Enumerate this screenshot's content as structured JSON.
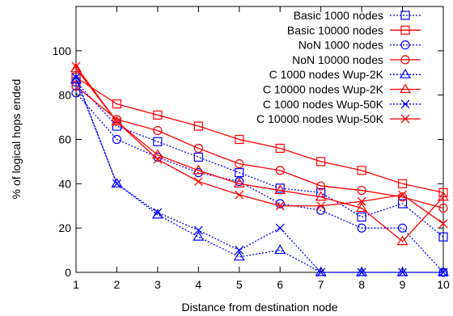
{
  "chart_data": {
    "type": "line",
    "title": "",
    "xlabel": "Distance from destination node",
    "ylabel": "% of logical hops ended",
    "xlim": [
      1,
      10
    ],
    "ylim": [
      0,
      120
    ],
    "x_ticks": [
      1,
      2,
      3,
      4,
      5,
      6,
      7,
      8,
      9,
      10
    ],
    "y_ticks": [
      0,
      20,
      40,
      60,
      80,
      100
    ],
    "grid": false,
    "legend_position": "top-right",
    "x": [
      1,
      2,
      3,
      4,
      5,
      6,
      7,
      8,
      9,
      10
    ],
    "series": [
      {
        "name": "Basic 1000 nodes",
        "color": "#0000ff",
        "dash": "dotted",
        "marker": "square",
        "values": [
          86,
          66,
          59,
          52,
          45,
          38,
          36,
          25,
          31,
          16
        ]
      },
      {
        "name": "Basic 10000 nodes",
        "color": "#ff0000",
        "dash": "solid",
        "marker": "square",
        "values": [
          88,
          76,
          71,
          66,
          60,
          56,
          50,
          46,
          40,
          36
        ]
      },
      {
        "name": "NoN 1000 nodes",
        "color": "#0000ff",
        "dash": "dotted",
        "marker": "circle",
        "values": [
          81,
          60,
          52,
          45,
          41,
          31,
          28,
          20,
          20,
          0
        ]
      },
      {
        "name": "NoN 10000 nodes",
        "color": "#ff0000",
        "dash": "solid",
        "marker": "circle",
        "values": [
          84,
          69,
          64,
          56,
          49,
          46,
          39,
          37,
          34,
          29
        ]
      },
      {
        "name": "C 1000 nodes Wup-2K",
        "color": "#0000ff",
        "dash": "dotted",
        "marker": "triangle",
        "values": [
          87,
          40,
          26,
          16,
          7,
          10,
          0,
          0,
          0,
          0
        ]
      },
      {
        "name": "C 10000 nodes Wup-2K",
        "color": "#ff0000",
        "dash": "solid",
        "marker": "triangle",
        "values": [
          92,
          68,
          53,
          46,
          40,
          37,
          34,
          29,
          14,
          34
        ]
      },
      {
        "name": "C 1000 nodes Wup-50K",
        "color": "#0000ff",
        "dash": "dotted",
        "marker": "x",
        "values": [
          88,
          40,
          27,
          19,
          10,
          20,
          0,
          0,
          0,
          0
        ]
      },
      {
        "name": "C 10000 nodes Wup-50K",
        "color": "#ff0000",
        "dash": "solid",
        "marker": "x",
        "values": [
          93,
          68,
          51,
          41,
          35,
          30,
          30,
          32,
          35,
          22
        ]
      }
    ]
  }
}
